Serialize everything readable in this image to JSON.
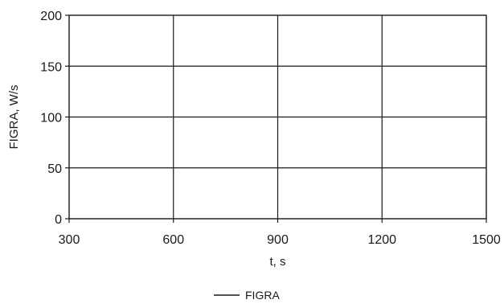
{
  "chart_data": {
    "type": "line",
    "xlabel": "t, s",
    "ylabel": "FIGRA, W/s",
    "xlim": [
      300,
      1500
    ],
    "ylim": [
      0,
      200
    ],
    "xticks": [
      300,
      600,
      900,
      1200,
      1500
    ],
    "yticks": [
      0,
      50,
      100,
      150,
      200
    ],
    "grid": true,
    "legend_position": "bottom-center",
    "series": [
      {
        "name": "FIGRA",
        "x": [],
        "y": [],
        "color": "#1a1a1a"
      }
    ]
  }
}
